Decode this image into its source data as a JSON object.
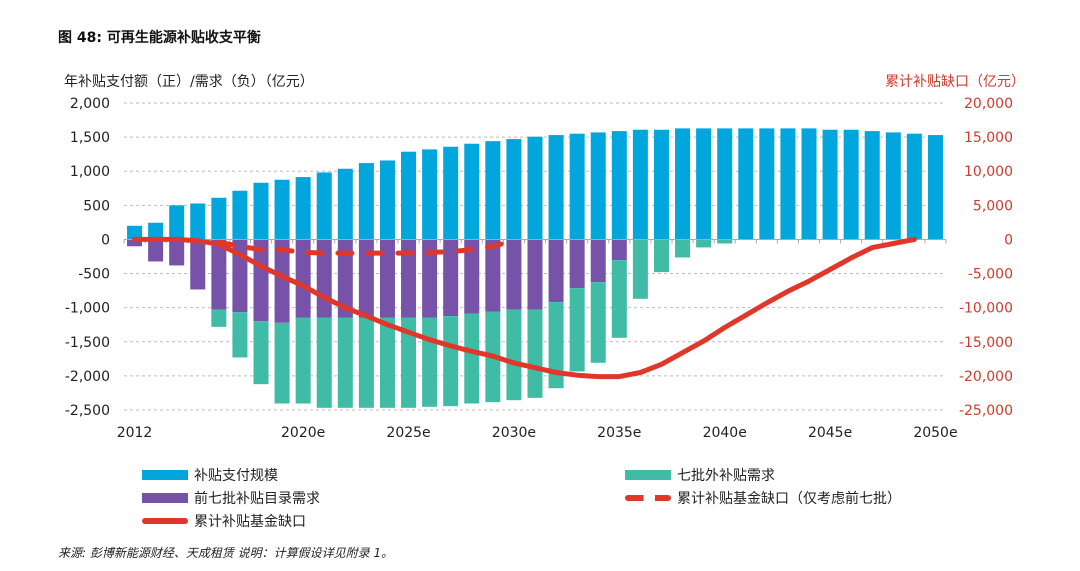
{
  "title": "图 48: 可再生能源补贴收支平衡",
  "source": "来源: 彭博新能源财经、天成租赁 说明：计算假设详见附录 1。",
  "chart_data": {
    "type": "bar",
    "title": "图 48: 可再生能源补贴收支平衡",
    "ylabel": "年补贴支付额（正）/需求（负）（亿元）",
    "ylabel_right": "累计补贴缺口（亿元）",
    "ylim": [
      -2500,
      2000
    ],
    "ylim_right": [
      -25000,
      20000
    ],
    "yticks": [
      "2,000",
      "1,500",
      "1,000",
      "500",
      "0",
      "-500",
      "-1,000",
      "-1,500",
      "-2,000",
      "-2,500"
    ],
    "yticks_right": [
      "20,000",
      "15,000",
      "10,000",
      "5,000",
      "0",
      "-5,000",
      "-10,000",
      "-15,000",
      "-20,000",
      "-25,000"
    ],
    "grid": true,
    "legend_placement": "bottom",
    "x": [
      2012,
      2013,
      2014,
      2015,
      2016,
      2017,
      2018,
      2019,
      2020,
      2021,
      2022,
      2023,
      2024,
      2025,
      2026,
      2027,
      2028,
      2029,
      2030,
      2031,
      2032,
      2033,
      2034,
      2035,
      2036,
      2037,
      2038,
      2039,
      2040,
      2041,
      2042,
      2043,
      2044,
      2045,
      2046,
      2047,
      2048,
      2049,
      2050
    ],
    "xtick_labels": [
      {
        "x": 2012,
        "label": "2012"
      },
      {
        "x": 2020,
        "label": "2020e"
      },
      {
        "x": 2025,
        "label": "2025e"
      },
      {
        "x": 2030,
        "label": "2030e"
      },
      {
        "x": 2035,
        "label": "2035e"
      },
      {
        "x": 2040,
        "label": "2040e"
      },
      {
        "x": 2045,
        "label": "2045e"
      },
      {
        "x": 2050,
        "label": "2050e"
      }
    ],
    "series": [
      {
        "name": "补贴支付规模",
        "kind": "bar",
        "axis": "left",
        "color": "#00a6dc",
        "values": [
          200,
          245,
          500,
          527,
          611,
          714,
          831,
          875,
          914,
          982,
          1036,
          1119,
          1158,
          1286,
          1320,
          1359,
          1403,
          1441,
          1471,
          1506,
          1530,
          1550,
          1569,
          1588,
          1608,
          1608,
          1628,
          1628,
          1628,
          1628,
          1628,
          1628,
          1628,
          1608,
          1608,
          1588,
          1569,
          1550,
          1530
        ]
      },
      {
        "name": "前七批补贴目录需求",
        "kind": "bar",
        "axis": "left",
        "color": "#7652a8",
        "values": [
          -100,
          -323,
          -381,
          -733,
          -1026,
          -1066,
          -1198,
          -1222,
          -1144,
          -1144,
          -1144,
          -1144,
          -1144,
          -1144,
          -1144,
          -1124,
          -1085,
          -1056,
          -1026,
          -1026,
          -919,
          -714,
          -626,
          -304,
          0,
          0,
          0,
          0,
          0,
          0,
          0,
          0,
          0,
          0,
          0,
          0,
          0,
          0,
          0
        ]
      },
      {
        "name": "七批外补贴需求",
        "kind": "bar",
        "axis": "left",
        "color": "#40bba6",
        "stacked_below": "前七批补贴目录需求",
        "values": [
          0,
          0,
          0,
          0,
          -255,
          -664,
          -923,
          -1183,
          -1261,
          -1324,
          -1324,
          -1324,
          -1324,
          -1324,
          -1309,
          -1320,
          -1320,
          -1329,
          -1330,
          -1296,
          -1262,
          -1221,
          -1182,
          -1138,
          -870,
          -479,
          -264,
          -117,
          -59,
          0,
          0,
          0,
          0,
          0,
          0,
          0,
          0,
          0,
          0
        ]
      },
      {
        "name": "累计补贴基金缺口（仅考虑前七批）",
        "kind": "line",
        "style": "dashed",
        "axis": "right",
        "color": "#e0372a",
        "values": [
          null,
          null,
          null,
          null,
          -400,
          -1000,
          -1500,
          -1500,
          -1900,
          -2000,
          -2000,
          -2000,
          -2000,
          -2000,
          -1900,
          -1800,
          -1500,
          -1000,
          -200,
          null,
          null,
          null,
          null,
          null,
          null,
          null,
          null,
          null,
          null,
          null,
          null,
          null,
          null,
          null,
          null,
          null,
          null,
          null,
          null
        ]
      },
      {
        "name": "累计补贴基金缺口",
        "kind": "line",
        "style": "solid",
        "axis": "right",
        "color": "#e0372a",
        "values": [
          0,
          0,
          0,
          -200,
          -700,
          -2200,
          -3900,
          -5400,
          -6800,
          -8500,
          -10000,
          -11200,
          -12500,
          -13600,
          -14700,
          -15600,
          -16400,
          -17100,
          -18100,
          -18800,
          -19500,
          -19900,
          -20100,
          -20100,
          -19500,
          -18300,
          -16600,
          -14900,
          -12900,
          -11100,
          -9300,
          -7600,
          -6100,
          -4400,
          -2700,
          -1200,
          -600,
          0,
          null
        ]
      }
    ]
  }
}
